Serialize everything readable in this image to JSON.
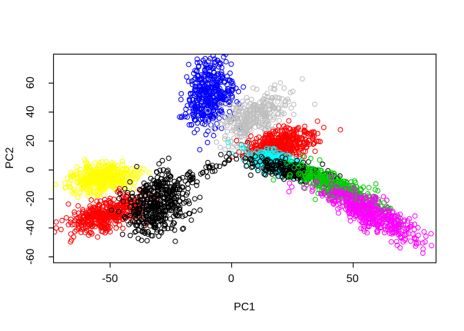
{
  "figure": {
    "background": "#ffffff",
    "plot_border_color": "#000000"
  },
  "chart_data": {
    "type": "scatter",
    "title": "",
    "xlabel": "PC1",
    "ylabel": "PC2",
    "xlim": [
      -73.4,
      84.3
    ],
    "ylim": [
      -64.1,
      79.8
    ],
    "x_ticks": [
      -50,
      0,
      50
    ],
    "y_ticks": [
      -60,
      -40,
      -20,
      0,
      20,
      40,
      60
    ],
    "grid": false,
    "legend": "none",
    "marker": {
      "shape": "open-circle",
      "radius_px": 3.3,
      "stroke_px": 1.1
    },
    "palette": [
      "#000000",
      "#FF0000",
      "#00CD00",
      "#0000FF",
      "#00FFFF",
      "#FF00FF",
      "#FFFF00",
      "#BEBEBE"
    ],
    "clusters": [
      {
        "name": "blue-top",
        "color": "#0000FF",
        "n": 420,
        "cx": -9.5,
        "cy": 52,
        "sdx": 5.2,
        "sdy": 11.5,
        "rho": 0.12
      },
      {
        "name": "gray-upper",
        "color": "#BEBEBE",
        "n": 310,
        "cx": 9,
        "cy": 36,
        "sdx": 7.5,
        "sdy": 9.5,
        "rho": 0.5
      },
      {
        "name": "black-trail",
        "color": "#000000",
        "n": 50,
        "cx": -13,
        "cy": -4,
        "sdx": 7.5,
        "sdy": 7.5,
        "rho": 0.92
      },
      {
        "name": "yellow-left",
        "color": "#FFFF00",
        "n": 430,
        "cx": -53,
        "cy": -6,
        "sdx": 6.5,
        "sdy": 5,
        "rho": 0.2
      },
      {
        "name": "red-left",
        "color": "#FF0000",
        "n": 400,
        "cx": -51.5,
        "cy": -31,
        "sdx": 7.5,
        "sdy": 6.5,
        "rho": 0.55
      },
      {
        "name": "black-left",
        "color": "#000000",
        "n": 440,
        "cx": -30.5,
        "cy": -23.5,
        "sdx": 6.2,
        "sdy": 10.5,
        "rho": 0.3
      },
      {
        "name": "red-center",
        "color": "#FF0000",
        "n": 450,
        "cx": 19.5,
        "cy": 17,
        "sdx": 7.5,
        "sdy": 5.5,
        "rho": 0.4
      },
      {
        "name": "cyan-center",
        "color": "#00FFFF",
        "n": 330,
        "cx": 19,
        "cy": 4,
        "sdx": 6,
        "sdy": 4.5,
        "rho": -0.6
      },
      {
        "name": "black-mid",
        "color": "#000000",
        "n": 250,
        "cx": 24,
        "cy": -0.5,
        "sdx": 8.5,
        "sdy": 4.2,
        "rho": -0.65
      },
      {
        "name": "green-right",
        "color": "#00CD00",
        "n": 420,
        "cx": 46,
        "cy": -14.5,
        "sdx": 9.5,
        "sdy": 8.5,
        "rho": -0.85
      },
      {
        "name": "magenta-right",
        "color": "#FF00FF",
        "n": 440,
        "cx": 58,
        "cy": -31,
        "sdx": 11,
        "sdy": 10.5,
        "rho": -0.85
      }
    ]
  }
}
